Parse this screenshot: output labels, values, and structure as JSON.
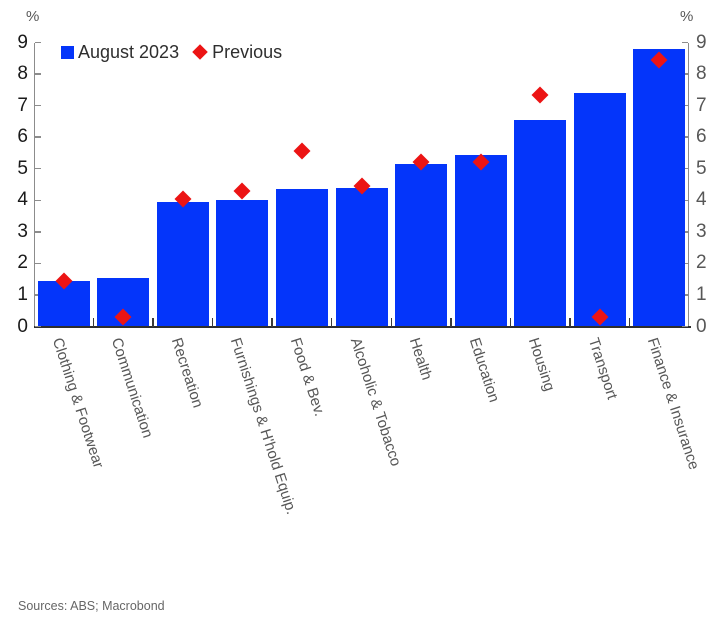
{
  "chart_data": {
    "type": "bar",
    "title": "",
    "unit_left": "%",
    "unit_right": "%",
    "categories": [
      "Clothing & Footwear",
      "Communication",
      "Recreation",
      "Furnishings & H'hold Equip.",
      "Food & Bev.",
      "Alcoholic & Tobacco",
      "Health",
      "Education",
      "Housing",
      "Transport",
      "Finance & Insurance"
    ],
    "series": [
      {
        "name": "August 2023",
        "type": "bar",
        "marker": "square",
        "color": "#0435fa",
        "values": [
          1.45,
          1.55,
          3.95,
          4.0,
          4.35,
          4.4,
          5.15,
          5.45,
          6.55,
          7.4,
          8.8
        ]
      },
      {
        "name": "Previous",
        "type": "scatter",
        "marker": "diamond",
        "color": "#ec1414",
        "values": [
          1.45,
          0.3,
          4.05,
          4.3,
          5.55,
          4.45,
          5.2,
          5.2,
          7.35,
          0.3,
          8.45
        ]
      }
    ],
    "ylim": [
      0,
      9
    ],
    "ytick_step": 1,
    "grid": false,
    "legend_position": "top-left",
    "axis_label_color_left": "#1a1a1a",
    "axis_label_color_right": "#575757",
    "category_label_color": "#575757",
    "category_label_rotation_deg": 72
  },
  "footer": {
    "sources": "Sources: ABS; Macrobond"
  }
}
